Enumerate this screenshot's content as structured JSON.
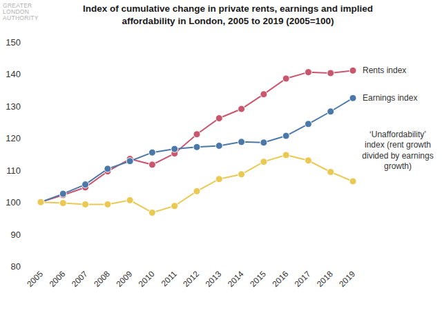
{
  "logo": "GREATER LONDON AUTHORITY",
  "chart_data": {
    "type": "line",
    "title": "Index of cumulative change in private rents, earnings and implied affordability in London, 2005 to 2019 (2005=100)",
    "categories": [
      "2005",
      "2006",
      "2007",
      "2008",
      "2009",
      "2010",
      "2011",
      "2012",
      "2013",
      "2014",
      "2015",
      "2016",
      "2017",
      "2018",
      "2019"
    ],
    "series": [
      {
        "name": "Rents index",
        "color": "#c9566d",
        "marker": "circle",
        "values": [
          100,
          102.2,
          104.6,
          109.6,
          113.5,
          111.7,
          115.2,
          121.2,
          126.2,
          129.1,
          133.7,
          138.6,
          140.6,
          140.3,
          141.1
        ]
      },
      {
        "name": "Earnings index",
        "color": "#4a79a9",
        "marker": "circle",
        "values": [
          100,
          102.6,
          105.5,
          110.4,
          112.8,
          115.5,
          116.6,
          117.2,
          117.6,
          118.8,
          118.6,
          120.7,
          124.4,
          128.3,
          132.5
        ]
      },
      {
        "name": "‘Unaffordability’ index (rent growth divided by earnings growth)",
        "color": "#e9c953",
        "marker": "circle",
        "values": [
          100,
          99.7,
          99.3,
          99.3,
          100.6,
          96.7,
          98.8,
          103.4,
          107.2,
          108.7,
          112.6,
          114.7,
          113.0,
          109.4,
          106.5
        ]
      }
    ],
    "ylim": [
      80,
      150
    ],
    "yticks": [
      80,
      90,
      100,
      110,
      120,
      130,
      140,
      150
    ],
    "grid": false
  }
}
